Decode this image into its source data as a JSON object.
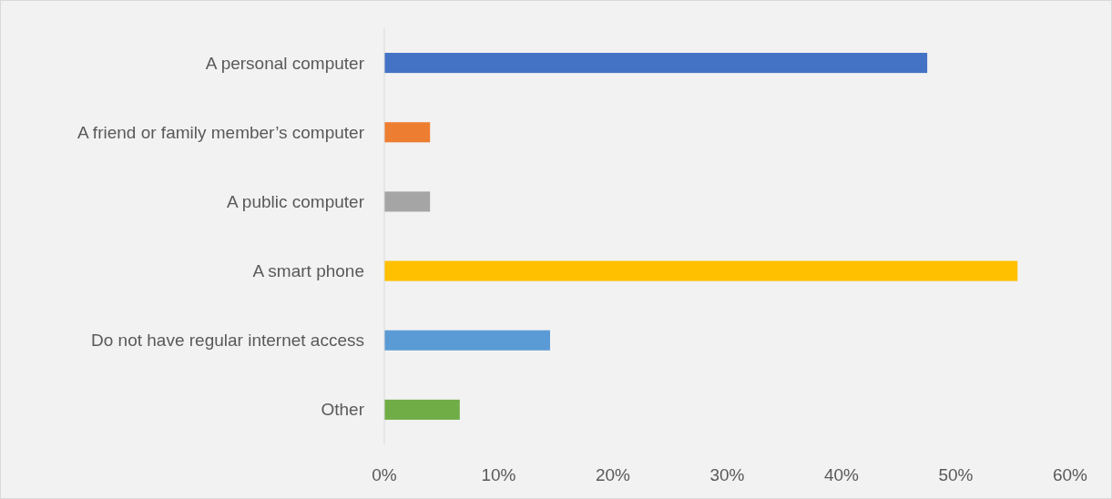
{
  "chart_data": {
    "type": "bar",
    "orientation": "horizontal",
    "categories": [
      "A personal computer",
      "A friend or family member’s computer",
      "A public computer",
      "A smart phone",
      "Do not have regular internet access",
      "Other"
    ],
    "values": [
      47.5,
      4.0,
      4.0,
      55.4,
      14.5,
      6.6
    ],
    "colors": [
      "#4472c4",
      "#ed7d31",
      "#a5a5a5",
      "#ffc000",
      "#5b9bd5",
      "#70ad47"
    ],
    "xlim": [
      0,
      60
    ],
    "xticks": [
      {
        "value": 0,
        "label": "0%"
      },
      {
        "value": 10,
        "label": "10%"
      },
      {
        "value": 20,
        "label": "20%"
      },
      {
        "value": 30,
        "label": "30%"
      },
      {
        "value": 40,
        "label": "40%"
      },
      {
        "value": 50,
        "label": "50%"
      },
      {
        "value": 60,
        "label": "60%"
      }
    ]
  }
}
